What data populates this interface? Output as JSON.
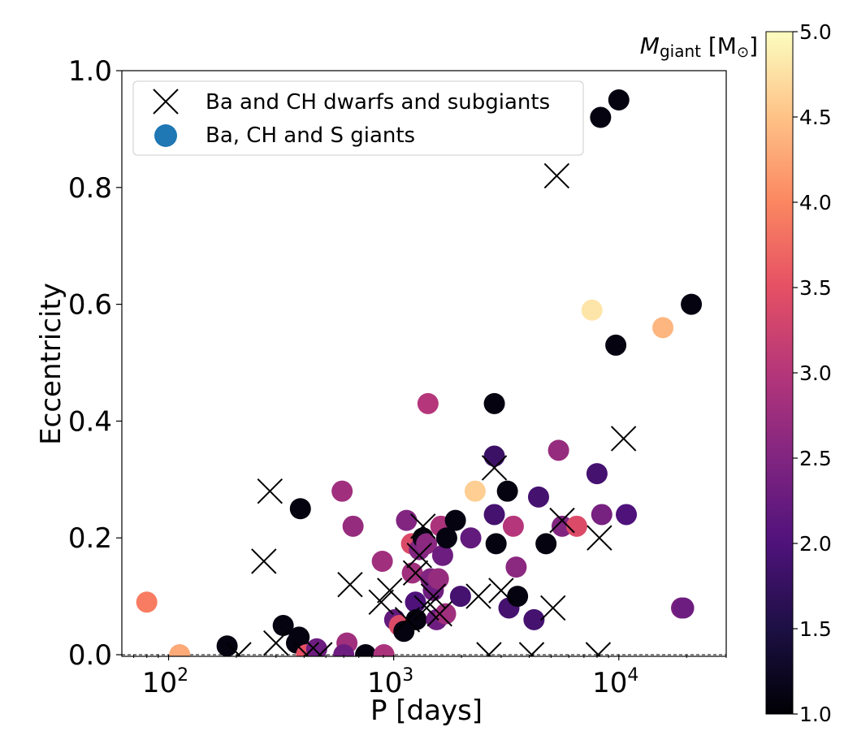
{
  "chart_data": {
    "type": "scatter",
    "xlabel": "P  [days]",
    "ylabel": "Eccentricity",
    "xscale": "log",
    "xlim": [
      62,
      30000
    ],
    "ylim": [
      0.0,
      1.0
    ],
    "xticks": [
      {
        "value": 100,
        "base": "10",
        "exp": "2"
      },
      {
        "value": 1000,
        "base": "10",
        "exp": "3"
      },
      {
        "value": 10000,
        "base": "10",
        "exp": "4"
      }
    ],
    "yticks": [
      "0.0",
      "0.2",
      "0.4",
      "0.6",
      "0.8",
      "1.0"
    ],
    "grid": false,
    "legend": {
      "position": "top-left",
      "entries": [
        {
          "label": "Ba and CH dwarfs and subgiants",
          "marker": "x",
          "color": "#000000"
        },
        {
          "label": "Ba, CH and S giants",
          "marker": "circle",
          "color": "#1f77b4"
        }
      ]
    },
    "colorbar": {
      "label_italic": "M",
      "label_sub": "giant",
      "label_unit_open": " [M",
      "label_unit_sym": "⊙",
      "label_unit_close": "]",
      "min": 1.0,
      "max": 5.0,
      "ticks": [
        "1.0",
        "1.5",
        "2.0",
        "2.5",
        "3.0",
        "3.5",
        "4.0",
        "4.5",
        "5.0"
      ],
      "colormap": "magma"
    },
    "series": [
      {
        "name": "Ba and CH dwarfs and subgiants",
        "marker": "x",
        "points": [
          {
            "x": 205,
            "y": 0.0
          },
          {
            "x": 282,
            "y": 0.28
          },
          {
            "x": 265,
            "y": 0.16
          },
          {
            "x": 300,
            "y": 0.02
          },
          {
            "x": 410,
            "y": 0.0
          },
          {
            "x": 470,
            "y": 0.0
          },
          {
            "x": 640,
            "y": 0.12
          },
          {
            "x": 880,
            "y": 0.09
          },
          {
            "x": 960,
            "y": 0.11
          },
          {
            "x": 1150,
            "y": 0.06
          },
          {
            "x": 1250,
            "y": 0.14
          },
          {
            "x": 1300,
            "y": 0.17
          },
          {
            "x": 1350,
            "y": 0.22
          },
          {
            "x": 1400,
            "y": 0.08
          },
          {
            "x": 1500,
            "y": 0.1
          },
          {
            "x": 1600,
            "y": 0.07
          },
          {
            "x": 2380,
            "y": 0.1
          },
          {
            "x": 2650,
            "y": 0.0
          },
          {
            "x": 2800,
            "y": 0.32
          },
          {
            "x": 3000,
            "y": 0.11
          },
          {
            "x": 4100,
            "y": 0.0
          },
          {
            "x": 5100,
            "y": 0.08
          },
          {
            "x": 5300,
            "y": 0.82
          },
          {
            "x": 5600,
            "y": 0.23
          },
          {
            "x": 8100,
            "y": 0.0
          },
          {
            "x": 8200,
            "y": 0.2
          },
          {
            "x": 10500,
            "y": 0.37
          }
        ]
      },
      {
        "name": "Ba, CH and S giants",
        "marker": "circle",
        "points": [
          {
            "x": 80,
            "y": 0.09,
            "m": 3.9
          },
          {
            "x": 112,
            "y": 0.0,
            "m": 4.3
          },
          {
            "x": 182,
            "y": 0.015,
            "m": 1.1
          },
          {
            "x": 323,
            "y": 0.05,
            "m": 1.1
          },
          {
            "x": 370,
            "y": 0.02,
            "m": 1.1
          },
          {
            "x": 385,
            "y": 0.25,
            "m": 1.1
          },
          {
            "x": 380,
            "y": 0.03,
            "m": 1.1
          },
          {
            "x": 410,
            "y": 0.0,
            "m": 3.5
          },
          {
            "x": 455,
            "y": 0.01,
            "m": 2.3
          },
          {
            "x": 590,
            "y": 0.28,
            "m": 2.8
          },
          {
            "x": 620,
            "y": 0.02,
            "m": 2.8
          },
          {
            "x": 660,
            "y": 0.22,
            "m": 2.7
          },
          {
            "x": 600,
            "y": 0.0,
            "m": 2.3
          },
          {
            "x": 750,
            "y": 0.0,
            "m": 1.1
          },
          {
            "x": 905,
            "y": 0.0,
            "m": 2.9
          },
          {
            "x": 890,
            "y": 0.16,
            "m": 2.8
          },
          {
            "x": 1010,
            "y": 0.06,
            "m": 2.2
          },
          {
            "x": 1060,
            "y": 0.05,
            "m": 3.4
          },
          {
            "x": 1110,
            "y": 0.04,
            "m": 1.1
          },
          {
            "x": 1140,
            "y": 0.23,
            "m": 2.5
          },
          {
            "x": 1200,
            "y": 0.19,
            "m": 3.4
          },
          {
            "x": 1210,
            "y": 0.14,
            "m": 2.8
          },
          {
            "x": 1250,
            "y": 0.09,
            "m": 2.0
          },
          {
            "x": 1260,
            "y": 0.06,
            "m": 1.1
          },
          {
            "x": 1300,
            "y": 0.18,
            "m": 2.5
          },
          {
            "x": 1350,
            "y": 0.2,
            "m": 1.1
          },
          {
            "x": 1400,
            "y": 0.19,
            "m": 2.6
          },
          {
            "x": 1420,
            "y": 0.43,
            "m": 3.0
          },
          {
            "x": 1460,
            "y": 0.13,
            "m": 2.5
          },
          {
            "x": 1500,
            "y": 0.11,
            "m": 2.3
          },
          {
            "x": 1550,
            "y": 0.06,
            "m": 2.3
          },
          {
            "x": 1580,
            "y": 0.13,
            "m": 2.7
          },
          {
            "x": 1620,
            "y": 0.22,
            "m": 2.9
          },
          {
            "x": 1650,
            "y": 0.17,
            "m": 2.3
          },
          {
            "x": 1700,
            "y": 0.07,
            "m": 2.8
          },
          {
            "x": 1720,
            "y": 0.2,
            "m": 1.1
          },
          {
            "x": 1880,
            "y": 0.23,
            "m": 1.1
          },
          {
            "x": 1980,
            "y": 0.1,
            "m": 1.9
          },
          {
            "x": 2200,
            "y": 0.2,
            "m": 2.2
          },
          {
            "x": 2300,
            "y": 0.28,
            "m": 4.6
          },
          {
            "x": 2800,
            "y": 0.43,
            "m": 1.1
          },
          {
            "x": 2800,
            "y": 0.34,
            "m": 1.8
          },
          {
            "x": 2800,
            "y": 0.24,
            "m": 1.9
          },
          {
            "x": 2850,
            "y": 0.19,
            "m": 1.1
          },
          {
            "x": 3200,
            "y": 0.28,
            "m": 1.1
          },
          {
            "x": 3250,
            "y": 0.08,
            "m": 1.9
          },
          {
            "x": 3400,
            "y": 0.22,
            "m": 3.0
          },
          {
            "x": 3500,
            "y": 0.15,
            "m": 2.6
          },
          {
            "x": 3550,
            "y": 0.1,
            "m": 1.1
          },
          {
            "x": 4200,
            "y": 0.06,
            "m": 1.9
          },
          {
            "x": 4400,
            "y": 0.27,
            "m": 1.9
          },
          {
            "x": 4750,
            "y": 0.19,
            "m": 1.1
          },
          {
            "x": 5400,
            "y": 0.35,
            "m": 2.7
          },
          {
            "x": 5600,
            "y": 0.22,
            "m": 2.5
          },
          {
            "x": 6500,
            "y": 0.22,
            "m": 3.4
          },
          {
            "x": 7600,
            "y": 0.59,
            "m": 4.8
          },
          {
            "x": 8000,
            "y": 0.31,
            "m": 1.9
          },
          {
            "x": 8300,
            "y": 0.92,
            "m": 1.1
          },
          {
            "x": 8400,
            "y": 0.24,
            "m": 2.4
          },
          {
            "x": 9700,
            "y": 0.53,
            "m": 1.1
          },
          {
            "x": 10000,
            "y": 0.95,
            "m": 1.1
          },
          {
            "x": 10800,
            "y": 0.24,
            "m": 2.0
          },
          {
            "x": 15700,
            "y": 0.56,
            "m": 4.4
          },
          {
            "x": 19000,
            "y": 0.08,
            "m": 2.4
          },
          {
            "x": 19400,
            "y": 0.08,
            "m": 2.3
          },
          {
            "x": 21000,
            "y": 0.6,
            "m": 1.1
          }
        ]
      }
    ]
  }
}
